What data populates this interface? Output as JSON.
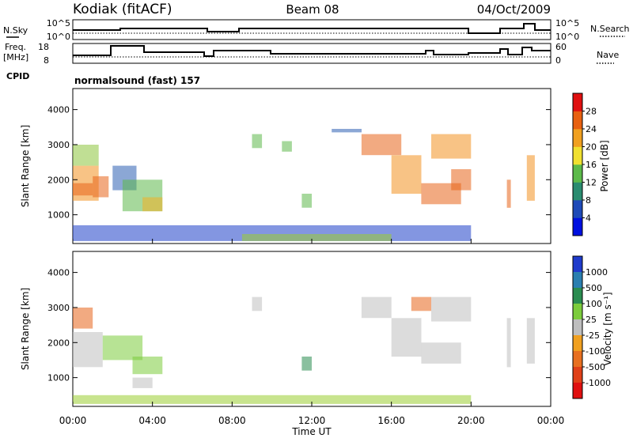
{
  "header": {
    "station": "Kodiak (fitACF)",
    "beam": "Beam 08",
    "date": "04/Oct/2009"
  },
  "strip_labels": {
    "nsky": "N.Sky",
    "nsky_ticks": [
      "10^5",
      "10^0"
    ],
    "nsearch": "N.Search",
    "nsearch_ticks": [
      "10^5",
      "10^0"
    ],
    "freq_line1": "Freq.",
    "freq_line2": "[MHz]",
    "freq_ticks": [
      "18",
      "8"
    ],
    "nave": "Nave",
    "nave_ticks": [
      "60",
      "0"
    ],
    "cpid": "CPID",
    "cpid_value": "normalsound (fast) 157"
  },
  "chart_data": [
    {
      "type": "heatmap",
      "name": "power",
      "ylabel": "Slant Range [km]",
      "yticks": [
        "4000",
        "3000",
        "2000",
        "1000"
      ],
      "ytick_values": [
        4000,
        3000,
        2000,
        1000
      ],
      "ylim": [
        180,
        4600
      ],
      "xlim": [
        0,
        24
      ],
      "colorbar_label": "Power [dB]",
      "colorbar_ticks": [
        "28",
        "24",
        "20",
        "16",
        "12",
        "8",
        "4"
      ],
      "colorbar_colors": [
        "#0010e0",
        "#1e4ab8",
        "#2a8c70",
        "#5cba4a",
        "#f0e030",
        "#f0a020",
        "#e86010",
        "#e01010"
      ],
      "patches": [
        {
          "t": [
            0.0,
            1.3
          ],
          "r": [
            1400,
            2400
          ],
          "color": "#f39221"
        },
        {
          "t": [
            0.0,
            1.0
          ],
          "r": [
            1550,
            1900
          ],
          "color": "#e8641a"
        },
        {
          "t": [
            0.0,
            1.3
          ],
          "r": [
            2400,
            3000
          ],
          "color": "#8cc43c"
        },
        {
          "t": [
            1.0,
            1.8
          ],
          "r": [
            1500,
            2100
          ],
          "color": "#e8641a"
        },
        {
          "t": [
            2.0,
            3.2
          ],
          "r": [
            1700,
            2400
          ],
          "color": "#2b5fb2"
        },
        {
          "t": [
            2.5,
            4.5
          ],
          "r": [
            1100,
            2000
          ],
          "color": "#5cb84a"
        },
        {
          "t": [
            3.5,
            4.5
          ],
          "r": [
            1100,
            1500
          ],
          "color": "#f2b022"
        },
        {
          "t": [
            0.0,
            20.0
          ],
          "r": [
            250,
            700
          ],
          "color": "#1e40c8"
        },
        {
          "t": [
            8.5,
            16.0
          ],
          "r": [
            250,
            450
          ],
          "color": "#9acd32"
        },
        {
          "t": [
            14.5,
            16.5
          ],
          "r": [
            2700,
            3300
          ],
          "color": "#e8641a"
        },
        {
          "t": [
            16.0,
            17.5
          ],
          "r": [
            1600,
            2700
          ],
          "color": "#f39221"
        },
        {
          "t": [
            17.5,
            19.5
          ],
          "r": [
            1300,
            1900
          ],
          "color": "#e8641a"
        },
        {
          "t": [
            18.0,
            20.0
          ],
          "r": [
            2600,
            3300
          ],
          "color": "#f39221"
        },
        {
          "t": [
            19.0,
            20.0
          ],
          "r": [
            1700,
            2300
          ],
          "color": "#e8641a"
        },
        {
          "t": [
            21.8,
            22.0
          ],
          "r": [
            1200,
            2000
          ],
          "color": "#e8641a"
        },
        {
          "t": [
            22.8,
            23.2
          ],
          "r": [
            1400,
            2700
          ],
          "color": "#f39221"
        },
        {
          "t": [
            9.0,
            9.5
          ],
          "r": [
            2900,
            3300
          ],
          "color": "#5cb84a"
        },
        {
          "t": [
            10.5,
            11.0
          ],
          "r": [
            2800,
            3100
          ],
          "color": "#5cb84a"
        },
        {
          "t": [
            11.5,
            12.0
          ],
          "r": [
            1200,
            1600
          ],
          "color": "#5cb84a"
        },
        {
          "t": [
            13.0,
            14.5
          ],
          "r": [
            3350,
            3450
          ],
          "color": "#2b5fb2"
        }
      ]
    },
    {
      "type": "heatmap",
      "name": "velocity",
      "ylabel": "Slant Range [km]",
      "yticks": [
        "4000",
        "3000",
        "2000",
        "1000"
      ],
      "ytick_values": [
        4000,
        3000,
        2000,
        1000
      ],
      "ylim": [
        180,
        4600
      ],
      "xlim": [
        0,
        24
      ],
      "xticks": [
        "00:00",
        "04:00",
        "08:00",
        "12:00",
        "16:00",
        "20:00",
        "00:00"
      ],
      "xtick_values": [
        0,
        4,
        8,
        12,
        16,
        20,
        24
      ],
      "xlabel": "Time UT",
      "colorbar_label": "Velocity [m s⁻¹]",
      "colorbar_ticks": [
        "1000",
        "500",
        "100",
        "25",
        "-25",
        "-100",
        "-500",
        "-1000"
      ],
      "colorbar_colors": [
        "#1f3bcc",
        "#2a7fb0",
        "#2a8c50",
        "#7ccc3c",
        "#bebebe",
        "#f0a020",
        "#e87020",
        "#e04018",
        "#e01010"
      ],
      "patches": [
        {
          "t": [
            0.0,
            1.5
          ],
          "r": [
            1300,
            2300
          ],
          "color": "#c0c0c0"
        },
        {
          "t": [
            0.0,
            1.0
          ],
          "r": [
            2400,
            3000
          ],
          "color": "#e8641a"
        },
        {
          "t": [
            1.5,
            3.5
          ],
          "r": [
            1500,
            2200
          ],
          "color": "#7ccc3c"
        },
        {
          "t": [
            3.0,
            4.5
          ],
          "r": [
            1100,
            1600
          ],
          "color": "#7ccc3c"
        },
        {
          "t": [
            3.0,
            4.0
          ],
          "r": [
            700,
            1000
          ],
          "color": "#c0c0c0"
        },
        {
          "t": [
            0.0,
            20.0
          ],
          "r": [
            250,
            500
          ],
          "color": "#9acd32"
        },
        {
          "t": [
            9.0,
            9.5
          ],
          "r": [
            2900,
            3300
          ],
          "color": "#c0c0c0"
        },
        {
          "t": [
            14.5,
            16.0
          ],
          "r": [
            2700,
            3300
          ],
          "color": "#c0c0c0"
        },
        {
          "t": [
            16.0,
            17.5
          ],
          "r": [
            1600,
            2700
          ],
          "color": "#c0c0c0"
        },
        {
          "t": [
            17.5,
            19.5
          ],
          "r": [
            1400,
            2000
          ],
          "color": "#c0c0c0"
        },
        {
          "t": [
            18.0,
            20.0
          ],
          "r": [
            2600,
            3300
          ],
          "color": "#c0c0c0"
        },
        {
          "t": [
            17.0,
            18.0
          ],
          "r": [
            2900,
            3300
          ],
          "color": "#e8641a"
        },
        {
          "t": [
            21.8,
            22.0
          ],
          "r": [
            1300,
            2700
          ],
          "color": "#c0c0c0"
        },
        {
          "t": [
            22.8,
            23.2
          ],
          "r": [
            1400,
            2700
          ],
          "color": "#c0c0c0"
        },
        {
          "t": [
            11.5,
            12.0
          ],
          "r": [
            1200,
            1600
          ],
          "color": "#2a8c50"
        }
      ]
    }
  ]
}
